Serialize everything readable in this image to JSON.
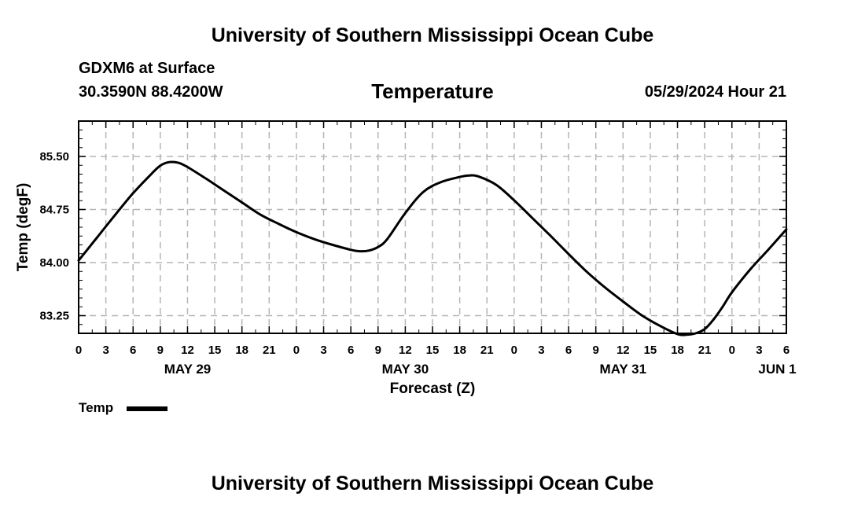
{
  "page": {
    "top_title": "University of Southern Mississippi Ocean Cube",
    "bottom_title": "University of Southern Mississippi Ocean Cube",
    "station": "GDXM6 at Surface",
    "coords": "30.3590N  88.4200W",
    "timestamp": "05/29/2024 Hour 21"
  },
  "legend": {
    "label": "Temp",
    "color": "#000000"
  },
  "chart_data": {
    "type": "line",
    "title": "Temperature",
    "xlabel": "Forecast (Z)",
    "ylabel": "Temp (degF)",
    "xlim": [
      0,
      78
    ],
    "ylim": [
      83.0,
      86.0
    ],
    "y_ticks": [
      83.25,
      84.0,
      84.75,
      85.5
    ],
    "y_tick_labels": [
      "83.25",
      "84.00",
      "84.75",
      "85.50"
    ],
    "x_ticks": [
      0,
      3,
      6,
      9,
      12,
      15,
      18,
      21,
      24,
      27,
      30,
      33,
      36,
      39,
      42,
      45,
      48,
      51,
      54,
      57,
      60,
      63,
      66,
      69,
      72,
      75,
      78
    ],
    "x_tick_labels": [
      "0",
      "3",
      "6",
      "9",
      "12",
      "15",
      "18",
      "21",
      "0",
      "3",
      "6",
      "9",
      "12",
      "15",
      "18",
      "21",
      "0",
      "3",
      "6",
      "9",
      "12",
      "15",
      "18",
      "21",
      "0",
      "3",
      "6"
    ],
    "date_labels": [
      {
        "hour": 12,
        "label": "MAY 29"
      },
      {
        "hour": 36,
        "label": "MAY 30"
      },
      {
        "hour": 60,
        "label": "MAY 31"
      },
      {
        "hour": 77,
        "label": "JUN 1"
      }
    ],
    "grid": true,
    "series": [
      {
        "name": "Temp",
        "x": [
          0,
          2,
          4,
          6,
          8,
          9,
          10,
          11,
          12,
          14,
          16,
          18,
          20,
          22,
          24,
          26,
          28,
          30,
          31,
          32,
          33,
          34,
          36,
          38,
          40,
          42,
          43,
          44,
          46,
          48,
          50,
          52,
          54,
          56,
          58,
          60,
          62,
          64,
          66,
          67,
          68,
          69,
          70,
          71,
          72,
          74,
          76,
          78
        ],
        "y": [
          84.03,
          84.35,
          84.67,
          84.98,
          85.25,
          85.37,
          85.42,
          85.41,
          85.35,
          85.19,
          85.02,
          84.85,
          84.68,
          84.55,
          84.43,
          84.33,
          84.25,
          84.18,
          84.16,
          84.17,
          84.22,
          84.33,
          84.7,
          85.0,
          85.14,
          85.21,
          85.23,
          85.22,
          85.1,
          84.88,
          84.63,
          84.38,
          84.12,
          83.87,
          83.65,
          83.45,
          83.26,
          83.11,
          82.99,
          82.98,
          83.0,
          83.06,
          83.2,
          83.38,
          83.58,
          83.9,
          84.18,
          84.47
        ]
      }
    ]
  }
}
